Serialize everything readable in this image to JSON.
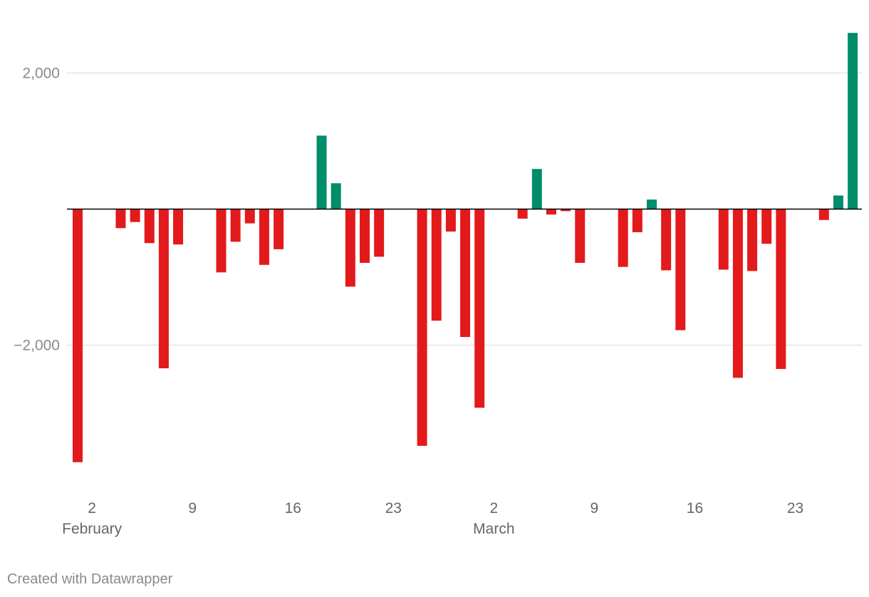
{
  "credit": "Created with Datawrapper",
  "colors": {
    "negative": "#e31a1c",
    "positive": "#018d6a",
    "grid": "#e3e3e3",
    "baseline": "#000000"
  },
  "chart_data": {
    "type": "bar",
    "title": "",
    "xlabel": "",
    "ylabel": "",
    "ylim": [
      -3900,
      2600
    ],
    "y_ticks": [
      {
        "value": 2000,
        "label": "2,000"
      },
      {
        "value": -2000,
        "label": "−2,000"
      }
    ],
    "x_ticks": [
      {
        "day_index": 2,
        "label": "2"
      },
      {
        "day_index": 9,
        "label": "9"
      },
      {
        "day_index": 16,
        "label": "16"
      },
      {
        "day_index": 23,
        "label": "23"
      },
      {
        "day_index": 30,
        "label": "2"
      },
      {
        "day_index": 37,
        "label": "9"
      },
      {
        "day_index": 44,
        "label": "16"
      },
      {
        "day_index": 51,
        "label": "23"
      }
    ],
    "months": [
      {
        "day_index": 2,
        "label": "February"
      },
      {
        "day_index": 30,
        "label": "March"
      }
    ],
    "series": [
      {
        "values": [
          -3720,
          0,
          0,
          -280,
          -190,
          -500,
          -2340,
          -520,
          0,
          0,
          -930,
          -480,
          -210,
          -820,
          -590,
          0,
          0,
          1080,
          380,
          -1140,
          -790,
          -700,
          0,
          0,
          -3480,
          -1640,
          -330,
          -1880,
          -2920,
          0,
          0,
          -140,
          590,
          -80,
          -30,
          -790,
          0,
          0,
          -850,
          -340,
          140,
          -900,
          -1780,
          0,
          0,
          -890,
          -2480,
          -910,
          -510,
          -2350,
          0,
          0,
          -160,
          200,
          2590
        ]
      }
    ]
  }
}
